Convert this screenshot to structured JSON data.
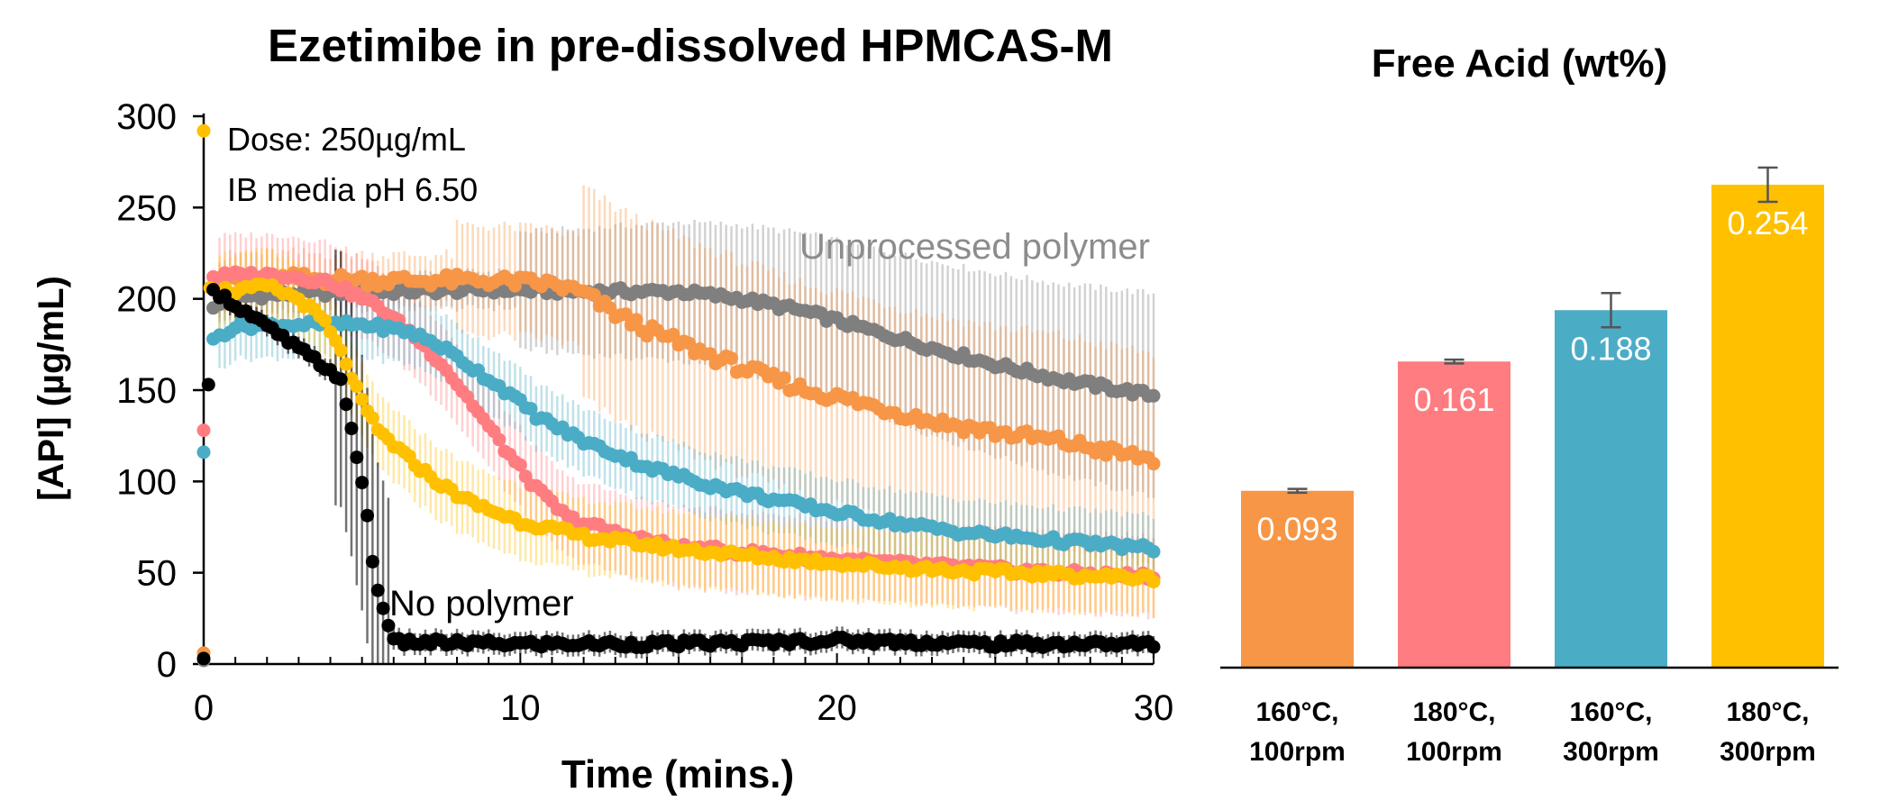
{
  "chart_data": [
    {
      "type": "scatter",
      "title": "Ezetimibe in pre-dissolved HPMCAS-M",
      "xlabel": "Time (mins.)",
      "ylabel": "[API] (µg/mL)",
      "xlim": [
        0,
        30
      ],
      "ylim": [
        0,
        300
      ],
      "x_ticks": [
        0,
        10,
        20,
        30
      ],
      "y_ticks": [
        0,
        50,
        100,
        150,
        200,
        250,
        300
      ],
      "annotations": [
        "Dose: 250µg/mL",
        "IB media pH 6.50",
        "Unprocessed polymer",
        "No polymer"
      ],
      "series": [
        {
          "color": "#7f7f7f",
          "label": "Unprocessed polymer",
          "points": [
            [
              0,
              2
            ],
            [
              0.3,
              195
            ],
            [
              1,
              201
            ],
            [
              3,
              203
            ],
            [
              6,
              204
            ],
            [
              9,
              205
            ],
            [
              12,
              204
            ],
            [
              15,
              204
            ],
            [
              17,
              200
            ],
            [
              19,
              193
            ],
            [
              21,
              183
            ],
            [
              23,
              173
            ],
            [
              25,
              164
            ],
            [
              27,
              156
            ],
            [
              29,
              150
            ],
            [
              30,
              147
            ]
          ],
          "err": 25
        },
        {
          "color": "#f79646",
          "points": [
            [
              0,
              6
            ],
            [
              0.3,
              205
            ],
            [
              1,
              211
            ],
            [
              3,
              211
            ],
            [
              6,
              210
            ],
            [
              9,
              210
            ],
            [
              11,
              208
            ],
            [
              12,
              203
            ],
            [
              13,
              192
            ],
            [
              14,
              183
            ],
            [
              15,
              176
            ],
            [
              17,
              162
            ],
            [
              19,
              150
            ],
            [
              21,
              142
            ],
            [
              23,
              133
            ],
            [
              25,
              127
            ],
            [
              27,
              122
            ],
            [
              29,
              115
            ],
            [
              30,
              112
            ]
          ],
          "err": 50
        },
        {
          "color": "#ff7c80",
          "points": [
            [
              0,
              128
            ],
            [
              0.3,
              212
            ],
            [
              1,
              213
            ],
            [
              2.5,
              213
            ],
            [
              4,
              209
            ],
            [
              5.5,
              196
            ],
            [
              6.5,
              182
            ],
            [
              7.5,
              165
            ],
            [
              8.5,
              142
            ],
            [
              9.5,
              118
            ],
            [
              10.5,
              96
            ],
            [
              11.5,
              80
            ],
            [
              13,
              72
            ],
            [
              15,
              64
            ],
            [
              18,
              60
            ],
            [
              21,
              56
            ],
            [
              24,
              53
            ],
            [
              27,
              50
            ],
            [
              30,
              48
            ]
          ],
          "err": 22
        },
        {
          "color": "#4bacc6",
          "points": [
            [
              0,
              116
            ],
            [
              0.3,
              178
            ],
            [
              1,
              185
            ],
            [
              3,
              186
            ],
            [
              5,
              186
            ],
            [
              6.5,
              182
            ],
            [
              7.5,
              174
            ],
            [
              8.5,
              162
            ],
            [
              9.5,
              150
            ],
            [
              10.5,
              136
            ],
            [
              12,
              122
            ],
            [
              14,
              108
            ],
            [
              16,
              98
            ],
            [
              18,
              90
            ],
            [
              20,
              83
            ],
            [
              22,
              77
            ],
            [
              24,
              72
            ],
            [
              26,
              69
            ],
            [
              28,
              66
            ],
            [
              30,
              63
            ]
          ],
          "err": 18
        },
        {
          "color": "#ffc000",
          "points": [
            [
              0,
              292
            ],
            [
              0.2,
              206
            ],
            [
              1,
              204
            ],
            [
              2,
              207
            ],
            [
              3,
              200
            ],
            [
              3.8,
              188
            ],
            [
              4.5,
              165
            ],
            [
              5,
              143
            ],
            [
              5.5,
              128
            ],
            [
              6.5,
              112
            ],
            [
              7.5,
              98
            ],
            [
              8.5,
              88
            ],
            [
              10,
              78
            ],
            [
              12,
              70
            ],
            [
              15,
              63
            ],
            [
              18,
              58
            ],
            [
              21,
              54
            ],
            [
              24,
              51
            ],
            [
              27,
              49
            ],
            [
              30,
              47
            ]
          ],
          "err": 20
        },
        {
          "color": "#000000",
          "label": "No polymer",
          "points": [
            [
              0,
              3
            ],
            [
              0.15,
              153
            ],
            [
              0.3,
              205
            ],
            [
              4.3,
              157
            ],
            [
              4.6,
              133
            ],
            [
              4.8,
              117
            ],
            [
              5,
              100
            ],
            [
              5.2,
              77
            ],
            [
              5.4,
              45
            ],
            [
              5.6,
              36
            ],
            [
              6,
              12
            ],
            [
              10,
              11
            ],
            [
              15,
              11
            ],
            [
              20,
              13
            ],
            [
              25,
              11
            ],
            [
              30,
              11
            ]
          ],
          "err": 6
        }
      ]
    },
    {
      "type": "bar",
      "title": "Free Acid (wt%)",
      "categories": [
        [
          "160°C,",
          "100rpm"
        ],
        [
          "180°C,",
          "100rpm"
        ],
        [
          "160°C,",
          "300rpm"
        ],
        [
          "180°C,",
          "300rpm"
        ]
      ],
      "values": [
        0.093,
        0.161,
        0.188,
        0.254
      ],
      "value_labels": [
        "0.093",
        "0.161",
        "0.188",
        "0.254"
      ],
      "errors": [
        0.001,
        0.001,
        0.009,
        0.009
      ],
      "colors": [
        "#f79646",
        "#ff7c80",
        "#4bacc6",
        "#ffc000"
      ],
      "ylim": [
        0,
        0.29
      ]
    }
  ]
}
